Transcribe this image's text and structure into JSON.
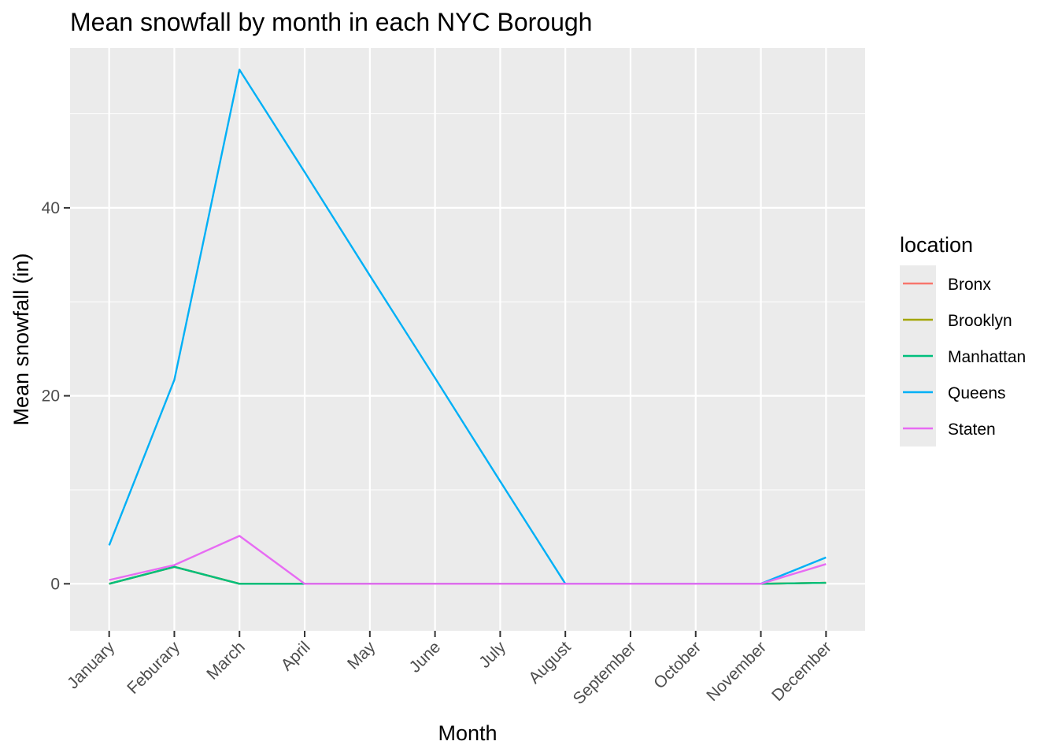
{
  "chart_data": {
    "type": "line",
    "title": "Mean snowfall by month in each NYC Borough",
    "xlabel": "Month",
    "ylabel": "Mean snowfall (in)",
    "categories": [
      "January",
      "Feburary",
      "March",
      "April",
      "May",
      "June",
      "July",
      "August",
      "September",
      "October",
      "November",
      "December"
    ],
    "ylim": [
      -5,
      57
    ],
    "yticks": [
      0,
      20,
      40
    ],
    "grid": true,
    "legend": {
      "title": "location",
      "placement": "right"
    },
    "series": [
      {
        "name": "Bronx",
        "color": "#F8766D",
        "values": [
          0,
          1.8,
          0,
          0,
          0,
          0,
          0,
          0,
          0,
          0,
          0,
          0.1
        ]
      },
      {
        "name": "Brooklyn",
        "color": "#A3A500",
        "values": [
          0,
          1.8,
          0,
          0,
          0,
          0,
          0,
          0,
          0,
          0,
          0,
          0.1
        ]
      },
      {
        "name": "Manhattan",
        "color": "#00BF7D",
        "values": [
          0,
          1.8,
          0,
          0,
          0,
          0,
          0,
          0,
          0,
          0,
          0,
          0.1
        ]
      },
      {
        "name": "Queens",
        "color": "#00B0F6",
        "values": [
          4.1,
          21.7,
          54.7,
          43.8,
          32.8,
          21.9,
          10.9,
          0,
          0,
          0,
          0,
          2.8
        ]
      },
      {
        "name": "Staten",
        "color": "#E76BF3",
        "values": [
          0.4,
          2.0,
          5.1,
          0,
          0,
          0,
          0,
          0,
          0,
          0,
          0,
          2.1
        ]
      }
    ]
  }
}
